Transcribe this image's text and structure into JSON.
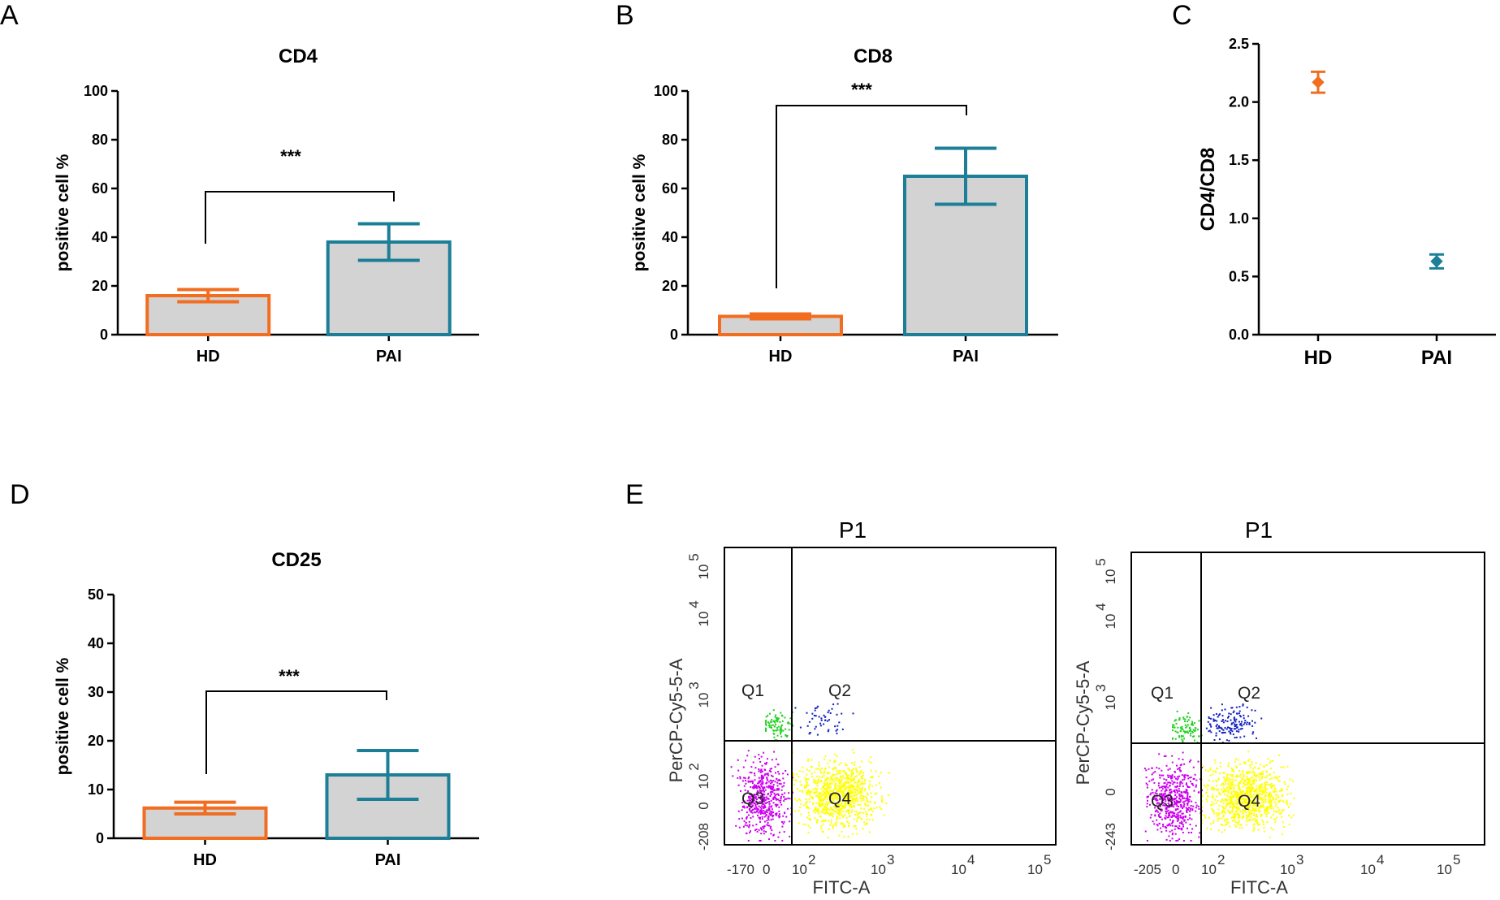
{
  "panels": {
    "A": "A",
    "B": "B",
    "C": "C",
    "D": "D",
    "E": "E"
  },
  "colors": {
    "hd": "#f26d1f",
    "pai": "#1c7f97",
    "bar_fill": "#d3d3d3",
    "q1": "#22d11f",
    "q2": "#1020c0",
    "q3": "#cc00ee",
    "q4": "#ffff00"
  },
  "chart_data": [
    {
      "id": "A",
      "type": "bar",
      "title": "CD4",
      "ylabel": "positive cell %",
      "categories": [
        "HD",
        "PAI"
      ],
      "values": [
        16,
        38
      ],
      "errors": [
        2.5,
        7.5
      ],
      "ylim": [
        0,
        100
      ],
      "yticks": [
        "0",
        "20",
        "40",
        "60",
        "80",
        "100"
      ],
      "annotation": "***"
    },
    {
      "id": "B",
      "type": "bar",
      "title": "CD8",
      "ylabel": "positive cell %",
      "categories": [
        "HD",
        "PAI"
      ],
      "values": [
        7.5,
        65
      ],
      "errors": [
        1,
        11.5
      ],
      "ylim": [
        0,
        100
      ],
      "yticks": [
        "0",
        "20",
        "40",
        "60",
        "80",
        "100"
      ],
      "annotation": "***"
    },
    {
      "id": "C",
      "type": "scatter",
      "title": "",
      "ylabel": "CD4/CD8",
      "categories": [
        "HD",
        "PAI"
      ],
      "values": [
        2.17,
        0.63
      ],
      "errors": [
        0.09,
        0.06
      ],
      "ylim": [
        0,
        2.5
      ],
      "yticks": [
        "0.0",
        "0.5",
        "1.0",
        "1.5",
        "2.0",
        "2.5"
      ]
    },
    {
      "id": "D",
      "type": "bar",
      "title": "CD25",
      "ylabel": "positive cell %",
      "categories": [
        "HD",
        "PAI"
      ],
      "values": [
        6.2,
        13
      ],
      "errors": [
        1.2,
        5
      ],
      "ylim": [
        0,
        50
      ],
      "yticks": [
        "0",
        "10",
        "20",
        "30",
        "40",
        "50"
      ],
      "annotation": "***"
    }
  ],
  "facs": [
    {
      "title": "P1",
      "xlabel": "FITC-A",
      "ylabel": "PerCP-Cy5-5-A",
      "xticks": [
        "-170",
        "0",
        "10",
        "10",
        "10",
        "10"
      ],
      "xexps": [
        "2",
        "3",
        "4",
        "5"
      ],
      "yticks": [
        "-208",
        "0",
        "10",
        "10",
        "10",
        "10"
      ],
      "yexps": [
        "2",
        "3",
        "4",
        "5"
      ],
      "quadrants": [
        "Q1",
        "Q2",
        "Q3",
        "Q4"
      ]
    },
    {
      "title": "P1",
      "xlabel": "FITC-A",
      "ylabel": "PerCP-Cy5-5-A",
      "xticks": [
        "-205",
        "0",
        "10",
        "10",
        "10",
        "10"
      ],
      "xexps": [
        "2",
        "3",
        "4",
        "5"
      ],
      "yticks": [
        "-243",
        "0",
        "10",
        "10",
        "10"
      ],
      "yexps": [
        "3",
        "4",
        "5"
      ],
      "quadrants": [
        "Q1",
        "Q2",
        "Q3",
        "Q4"
      ]
    }
  ]
}
